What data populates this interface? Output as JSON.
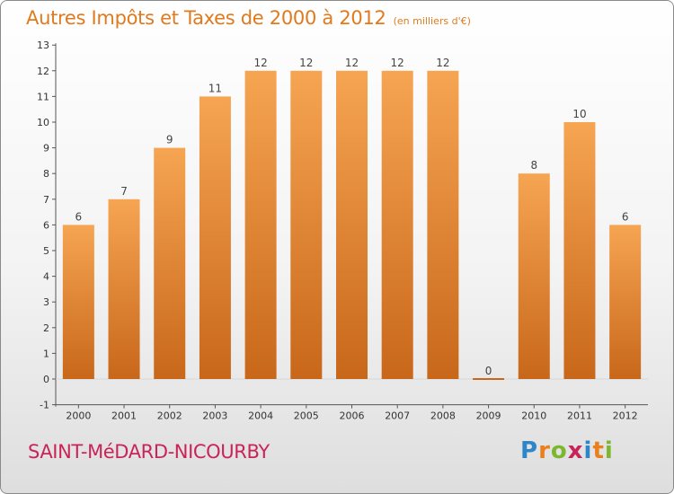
{
  "header": {
    "title": "Autres Impôts et Taxes de 2000 à 2012",
    "subtitle": "(en milliers d'€)"
  },
  "commune": "SAINT-MéDARD-NICOURBY",
  "logo": {
    "text": "Proxiti",
    "letter_colors": [
      "#2e86c8",
      "#e8801e",
      "#7cb82f",
      "#c9245a",
      "#2e86c8",
      "#e8801e",
      "#7cb82f"
    ]
  },
  "colors": {
    "bar_top": "#f6a552",
    "bar_bottom": "#c8671a",
    "axis": "#555555",
    "grid": "#bbbbbb",
    "title": "#e07a1e",
    "commune": "#c9245a"
  },
  "chart_data": {
    "type": "bar",
    "title": "Autres Impôts et Taxes de 2000 à 2012",
    "subtitle": "(en milliers d'€)",
    "categories": [
      "2000",
      "2001",
      "2002",
      "2003",
      "2004",
      "2005",
      "2006",
      "2007",
      "2008",
      "2009",
      "2010",
      "2011",
      "2012"
    ],
    "values": [
      6,
      7,
      9,
      11,
      12,
      12,
      12,
      12,
      12,
      0,
      8,
      10,
      6
    ],
    "data_labels": [
      "6",
      "7",
      "9",
      "11",
      "12",
      "12",
      "12",
      "12",
      "12",
      "0",
      "8",
      "10",
      "6"
    ],
    "yticks": [
      "-1",
      "0",
      "1",
      "2",
      "3",
      "4",
      "5",
      "6",
      "7",
      "8",
      "9",
      "10",
      "11",
      "12",
      "13"
    ],
    "ylim": [
      -1,
      13
    ],
    "xlabel": "",
    "ylabel": "",
    "grid": false,
    "legend": "none"
  }
}
